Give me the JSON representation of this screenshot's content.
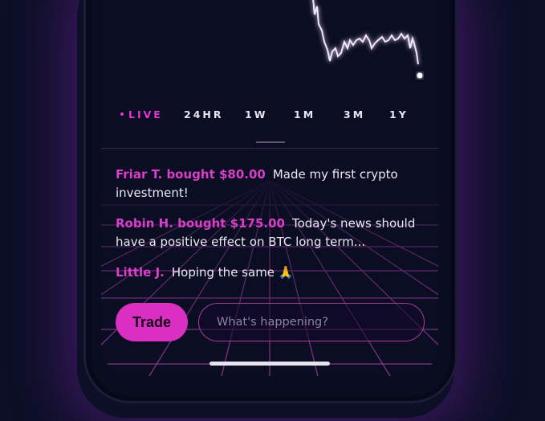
{
  "tabs": {
    "live": "LIVE",
    "h24": "24HR",
    "w1": "1W",
    "m1": "1M",
    "m3": "3M",
    "y1": "1Y"
  },
  "feed": [
    {
      "user": "Friar T. bought $80.00",
      "text": "Made my first crypto investment!"
    },
    {
      "user": "Robin H. bought $175.00",
      "text": "Today's news should have a positive effect on BTC long term..."
    },
    {
      "user": "Little J.",
      "text": "Hoping the same 🙏"
    }
  ],
  "composer": {
    "trade_label": "Trade",
    "placeholder": "What's happening?"
  },
  "colors": {
    "accent": "#db2fc4",
    "background": "#0b0d23",
    "chart_line": "#f4e6ff"
  },
  "icons": {
    "live_indicator": "live-dot-icon",
    "home": "home-indicator"
  }
}
